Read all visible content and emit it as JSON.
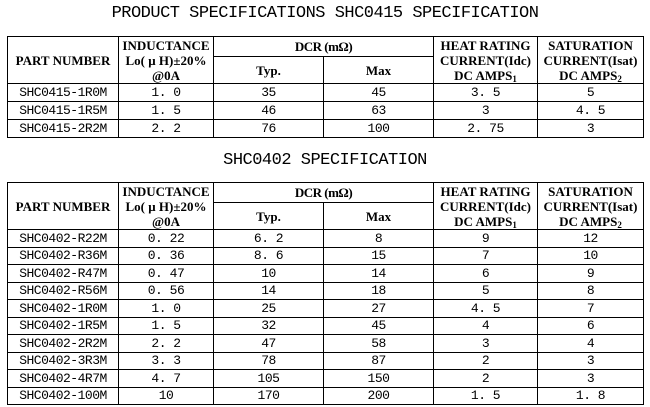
{
  "page": {
    "background": "#ffffff",
    "text_color": "#000000"
  },
  "sections": [
    {
      "title": "PRODUCT SPECIFICATIONS SHC0415 SPECIFICATION"
    },
    {
      "title": "SHC0402 SPECIFICATION"
    }
  ],
  "columns": {
    "part_number": "PART NUMBER",
    "inductance": [
      "INDUCTANCE",
      "Lo( μ H)±20%",
      "@0A"
    ],
    "dcr": "DCR (mΩ)",
    "typ": "Typ.",
    "max": "Max",
    "heat": [
      "HEAT RATING",
      "CURRENT(Idc)",
      "DC AMPS"
    ],
    "heat_subscript": "1",
    "saturation": [
      "SATURATION",
      "CURRENT(Isat)",
      "DC AMPS"
    ],
    "saturation_subscript": "2"
  },
  "shc0415_rows": [
    [
      "SHC0415-1R0M",
      "1. 0",
      "35",
      "45",
      "3. 5",
      "5"
    ],
    [
      "SHC0415-1R5M",
      "1. 5",
      "46",
      "63",
      "3",
      "4. 5"
    ],
    [
      "SHC0415-2R2M",
      "2. 2",
      "76",
      "100",
      "2. 75",
      "3"
    ]
  ],
  "shc0402_rows": [
    [
      "SHC0402-R22M",
      "0. 22",
      "6. 2",
      "8",
      "9",
      "12"
    ],
    [
      "SHC0402-R36M",
      "0. 36",
      "8. 6",
      "15",
      "7",
      "10"
    ],
    [
      "SHC0402-R47M",
      "0. 47",
      "10",
      "14",
      "6",
      "9"
    ],
    [
      "SHC0402-R56M",
      "0. 56",
      "14",
      "18",
      "5",
      "8"
    ],
    [
      "SHC0402-1R0M",
      "1. 0",
      "25",
      "27",
      "4. 5",
      "7"
    ],
    [
      "SHC0402-1R5M",
      "1. 5",
      "32",
      "45",
      "4",
      "6"
    ],
    [
      "SHC0402-2R2M",
      "2. 2",
      "47",
      "58",
      "3",
      "4"
    ],
    [
      "SHC0402-3R3M",
      "3. 3",
      "78",
      "87",
      "2",
      "3"
    ],
    [
      "SHC0402-4R7M",
      "4. 7",
      "105",
      "150",
      "2",
      "3"
    ],
    [
      "SHC0402-100M",
      "10",
      "170",
      "200",
      "1. 5",
      "1. 8"
    ]
  ]
}
